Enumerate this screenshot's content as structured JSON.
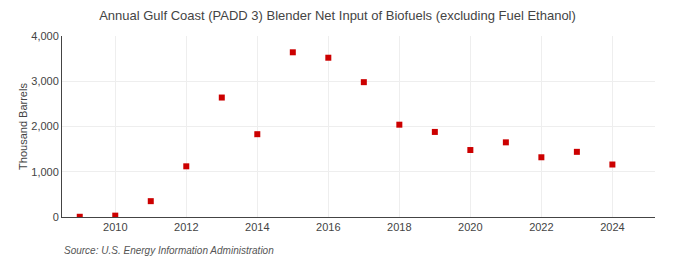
{
  "chart_data": {
    "type": "scatter",
    "title": "Annual Gulf Coast (PADD 3) Blender Net Input of Biofuels (excluding Fuel Ethanol)",
    "ylabel": "Thousand Barrels",
    "source": "Source: U.S. Energy Information Administration",
    "x": [
      2009,
      2010,
      2011,
      2012,
      2013,
      2014,
      2015,
      2016,
      2017,
      2018,
      2019,
      2020,
      2021,
      2022,
      2023,
      2024
    ],
    "values": [
      5,
      30,
      350,
      1120,
      2640,
      1830,
      3640,
      3520,
      2980,
      2040,
      1880,
      1480,
      1650,
      1320,
      1440,
      1160
    ],
    "color": "#cc0000",
    "marker": "square",
    "xlim": [
      2008.5,
      2025.2
    ],
    "xticks": [
      2010,
      2012,
      2014,
      2016,
      2018,
      2020,
      2022,
      2024
    ],
    "ylim": [
      0,
      4000
    ],
    "yticks": [
      0,
      {
        "value": 1000,
        "label": "1,000"
      },
      {
        "value": 2000,
        "label": "2,000"
      },
      {
        "value": 3000,
        "label": "3,000"
      },
      {
        "value": 4000,
        "label": "4,000"
      }
    ],
    "grid": true
  }
}
